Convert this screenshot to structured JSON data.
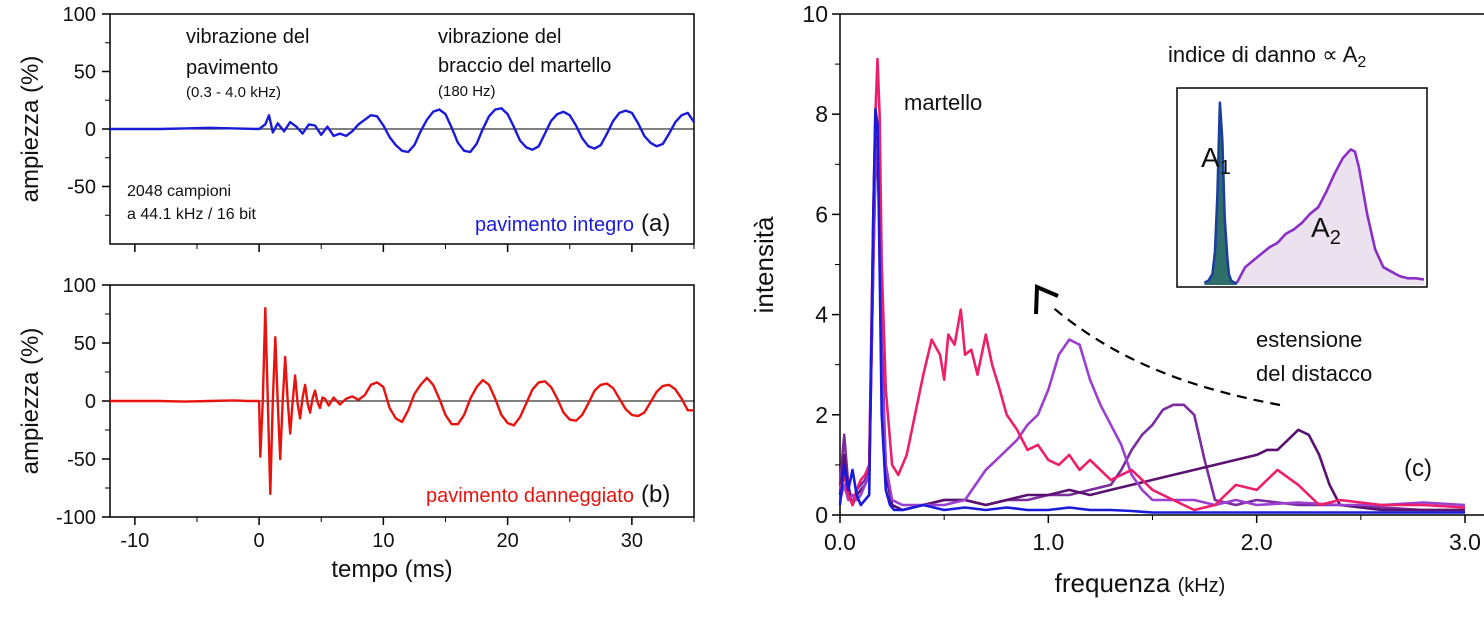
{
  "chart_data": [
    {
      "id": "a",
      "type": "line",
      "ylabel": "ampiezza (%)",
      "xlim": [
        -12,
        35
      ],
      "ylim": [
        -100,
        100
      ],
      "xticks": [
        -10,
        0,
        10,
        20,
        30
      ],
      "yticks": [
        -50,
        0,
        50,
        100
      ],
      "ytick_labels": [
        "-50",
        "0",
        "50",
        "100"
      ],
      "panel_label": "(a)",
      "annotations": {
        "vib_floor": [
          "vibrazione del",
          "pavimento",
          "(0.3 - 4.0 kHz)"
        ],
        "vib_arm": [
          "vibrazione del",
          "braccio del martello",
          "(180 Hz)"
        ],
        "samples": [
          "2048 campioni",
          "a 44.1 kHz / 16 bit"
        ]
      },
      "series": [
        {
          "name": "pavimento integro",
          "color": "#1a1adb",
          "x": [
            -12,
            -10,
            -8,
            -6,
            -4,
            -2,
            0,
            0.5,
            0.8,
            1.1,
            1.5,
            2,
            2.5,
            3,
            3.5,
            4,
            4.5,
            5,
            5.5,
            6,
            6.5,
            7,
            7.5,
            8,
            8.5,
            9,
            9.5,
            10,
            10.5,
            11,
            11.5,
            12,
            12.5,
            13,
            13.5,
            14,
            14.5,
            15,
            15.5,
            16,
            16.5,
            17,
            17.5,
            18,
            18.5,
            19,
            19.5,
            20,
            20.5,
            21,
            21.5,
            22,
            22.5,
            23,
            23.5,
            24,
            24.5,
            25,
            25.5,
            26,
            26.5,
            27,
            27.5,
            28,
            28.5,
            29,
            29.5,
            30,
            30.5,
            31,
            31.5,
            32,
            32.5,
            33,
            33.5,
            34,
            34.5,
            35
          ],
          "y": [
            0,
            0,
            0,
            0.5,
            1,
            0.5,
            0,
            4,
            12,
            -3,
            5,
            -2,
            6,
            2,
            -4,
            4,
            3,
            -5,
            2,
            -6,
            -4,
            -6,
            -2,
            4,
            8,
            12,
            11,
            3,
            -7,
            -14,
            -19,
            -20,
            -14,
            -2,
            8,
            15,
            17,
            13,
            1,
            -12,
            -19,
            -20,
            -13,
            0,
            11,
            17,
            18,
            13,
            2,
            -10,
            -16,
            -18,
            -15,
            -4,
            7,
            13,
            15,
            12,
            3,
            -8,
            -15,
            -17,
            -14,
            -4,
            7,
            14,
            16,
            14,
            5,
            -6,
            -12,
            -15,
            -13,
            -4,
            6,
            12,
            14,
            6
          ]
        }
      ]
    },
    {
      "id": "b",
      "type": "line",
      "xlabel": "tempo (ms)",
      "ylabel": "ampiezza (%)",
      "xlim": [
        -12,
        35
      ],
      "ylim": [
        -100,
        100
      ],
      "xticks": [
        -10,
        0,
        10,
        20,
        30
      ],
      "yticks": [
        -100,
        -50,
        0,
        50,
        100
      ],
      "xtick_labels": [
        "-10",
        "0",
        "10",
        "20",
        "30"
      ],
      "ytick_labels": [
        "-100",
        "-50",
        "0",
        "50",
        "100"
      ],
      "panel_label": "(b)",
      "series": [
        {
          "name": "pavimento danneggiato",
          "color": "#e8130f",
          "x": [
            -12,
            -10,
            -8,
            -6,
            -4,
            -2,
            -1,
            0,
            0.1,
            0.3,
            0.5,
            0.7,
            0.9,
            1.1,
            1.3,
            1.5,
            1.7,
            1.9,
            2.1,
            2.3,
            2.5,
            2.7,
            2.9,
            3.1,
            3.3,
            3.5,
            3.7,
            3.9,
            4.1,
            4.3,
            4.5,
            4.7,
            4.9,
            5.1,
            5.3,
            5.6,
            6,
            6.5,
            7,
            7.5,
            8,
            8.5,
            9,
            9.5,
            10,
            10.5,
            11,
            11.5,
            12,
            12.5,
            13,
            13.5,
            14,
            14.5,
            15,
            15.5,
            16,
            16.5,
            17,
            17.5,
            18,
            18.5,
            19,
            19.5,
            20,
            20.5,
            21,
            21.5,
            22,
            22.5,
            23,
            23.5,
            24,
            24.5,
            25,
            25.5,
            26,
            26.5,
            27,
            27.5,
            28,
            28.5,
            29,
            29.5,
            30,
            30.5,
            31,
            31.5,
            32,
            32.5,
            33,
            33.5,
            34,
            34.5,
            35
          ],
          "y": [
            0,
            0,
            0,
            -0.5,
            0,
            0.5,
            0,
            0,
            -48,
            0,
            80,
            0,
            -80,
            0,
            55,
            0,
            -50,
            0,
            38,
            0,
            -28,
            0,
            22,
            -2,
            -15,
            3,
            14,
            -2,
            -10,
            2,
            9,
            -1,
            -6,
            3,
            2,
            -4,
            3,
            -3,
            2,
            4,
            1,
            5,
            14,
            16,
            12,
            -6,
            -15,
            -18,
            -8,
            6,
            14,
            20,
            14,
            2,
            -12,
            -20,
            -20,
            -12,
            2,
            12,
            18,
            14,
            2,
            -12,
            -19,
            -21,
            -14,
            -2,
            10,
            16,
            17,
            12,
            2,
            -10,
            -16,
            -17,
            -12,
            -2,
            9,
            14,
            15,
            11,
            2,
            -7,
            -12,
            -13,
            -10,
            -1,
            8,
            13,
            14,
            10,
            2,
            -8,
            -8
          ]
        }
      ]
    },
    {
      "id": "c",
      "type": "line",
      "xlabel": "frequenza",
      "xlabel_unit": "(kHz)",
      "ylabel": "intensità",
      "xlim": [
        0,
        3
      ],
      "ylim": [
        0,
        10
      ],
      "xticks": [
        0,
        1,
        2,
        3
      ],
      "yticks": [
        0,
        2,
        4,
        6,
        8,
        10
      ],
      "xtick_labels": [
        "0.0",
        "1.0",
        "2.0",
        "3.0"
      ],
      "ytick_labels": [
        "0",
        "2",
        "4",
        "6",
        "8",
        "10"
      ],
      "panel_label": "(c)",
      "annotations": {
        "hammer": "martello",
        "damage_index": "indice di danno ∝ A",
        "damage_index_sub": "2",
        "extension": [
          "estensione",
          "del distacco"
        ]
      },
      "series": [
        {
          "color": "#1a1adb",
          "x": [
            0,
            0.02,
            0.04,
            0.06,
            0.08,
            0.1,
            0.12,
            0.14,
            0.16,
            0.17,
            0.18,
            0.19,
            0.2,
            0.22,
            0.24,
            0.26,
            0.3,
            0.4,
            0.5,
            0.6,
            0.7,
            0.8,
            0.9,
            1,
            1.1,
            1.2,
            1.3,
            1.4,
            1.5,
            1.6,
            1.7,
            1.8,
            1.9,
            2,
            2.2,
            2.4,
            2.6,
            2.8,
            3
          ],
          "y": [
            0.2,
            1,
            0.5,
            0.9,
            0.4,
            0.2,
            0.3,
            0.4,
            6,
            8.1,
            7.8,
            5,
            2,
            0.5,
            0.2,
            0.1,
            0.1,
            0.2,
            0.1,
            0.15,
            0.1,
            0.15,
            0.1,
            0.1,
            0.15,
            0.1,
            0.1,
            0.08,
            0.05,
            0.05,
            0.05,
            0.05,
            0.05,
            0.05,
            0.05,
            0.05,
            0.05,
            0.05,
            0.05
          ]
        },
        {
          "color": "#ee1f6a",
          "x": [
            0,
            0.02,
            0.04,
            0.06,
            0.08,
            0.1,
            0.12,
            0.14,
            0.16,
            0.17,
            0.18,
            0.19,
            0.2,
            0.22,
            0.25,
            0.28,
            0.32,
            0.36,
            0.4,
            0.44,
            0.48,
            0.5,
            0.52,
            0.55,
            0.58,
            0.6,
            0.63,
            0.66,
            0.7,
            0.73,
            0.76,
            0.8,
            0.85,
            0.9,
            0.95,
            1,
            1.05,
            1.1,
            1.15,
            1.2,
            1.3,
            1.4,
            1.5,
            1.6,
            1.7,
            1.8,
            1.9,
            2,
            2.1,
            2.2,
            2.3,
            2.4,
            2.6,
            2.8,
            3
          ],
          "y": [
            0.5,
            0.8,
            0.4,
            0.2,
            0.5,
            0.7,
            0.8,
            1,
            6,
            8,
            9.1,
            8,
            5,
            2.5,
            1,
            0.8,
            1.2,
            2,
            2.8,
            3.5,
            3.2,
            2.7,
            3.6,
            3.4,
            4.1,
            3.2,
            3.3,
            2.8,
            3.6,
            3,
            2.6,
            2,
            1.7,
            1.3,
            1.4,
            1.1,
            1,
            1.2,
            0.9,
            1.1,
            0.7,
            0.9,
            0.5,
            0.3,
            0.1,
            0.2,
            0.6,
            0.5,
            0.9,
            0.6,
            0.2,
            0.3,
            0.2,
            0.2,
            0.15
          ]
        },
        {
          "color": "#9b3fd1",
          "x": [
            0,
            0.02,
            0.04,
            0.06,
            0.08,
            0.1,
            0.12,
            0.14,
            0.16,
            0.17,
            0.18,
            0.19,
            0.2,
            0.22,
            0.25,
            0.3,
            0.4,
            0.5,
            0.6,
            0.7,
            0.75,
            0.8,
            0.85,
            0.9,
            0.95,
            1,
            1.05,
            1.1,
            1.15,
            1.2,
            1.25,
            1.3,
            1.35,
            1.4,
            1.45,
            1.5,
            1.6,
            1.7,
            1.8,
            1.9,
            2,
            2.2,
            2.4,
            2.6,
            2.8,
            3
          ],
          "y": [
            0.3,
            0.6,
            0.3,
            0.4,
            0.3,
            0.4,
            0.6,
            0.8,
            5,
            7,
            7.2,
            6,
            3,
            1,
            0.3,
            0.2,
            0.2,
            0.2,
            0.3,
            0.9,
            1.1,
            1.3,
            1.5,
            1.8,
            2,
            2.5,
            3.2,
            3.5,
            3.4,
            2.7,
            2.2,
            1.8,
            1.4,
            0.8,
            0.5,
            0.3,
            0.3,
            0.3,
            0.2,
            0.3,
            0.2,
            0.25,
            0.2,
            0.2,
            0.25,
            0.2
          ]
        },
        {
          "color": "#7b2c9e",
          "x": [
            0,
            0.02,
            0.04,
            0.06,
            0.08,
            0.1,
            0.12,
            0.14,
            0.16,
            0.17,
            0.18,
            0.19,
            0.2,
            0.22,
            0.25,
            0.3,
            0.4,
            0.5,
            0.6,
            0.7,
            0.8,
            0.9,
            1,
            1.1,
            1.2,
            1.3,
            1.35,
            1.4,
            1.45,
            1.5,
            1.55,
            1.6,
            1.65,
            1.7,
            1.75,
            1.8,
            1.9,
            2,
            2.2,
            2.4,
            2.6,
            2.8,
            3
          ],
          "y": [
            0.6,
            1.6,
            0.6,
            0.2,
            0.5,
            0.6,
            0.7,
            0.9,
            5.5,
            7.5,
            7.6,
            6.5,
            3.5,
            1,
            0.2,
            0.1,
            0.2,
            0.3,
            0.3,
            0.2,
            0.3,
            0.3,
            0.4,
            0.4,
            0.5,
            0.6,
            0.9,
            1.3,
            1.6,
            1.8,
            2.1,
            2.2,
            2.2,
            2,
            1.1,
            0.3,
            0.2,
            0.3,
            0.2,
            0.2,
            0.15,
            0.1,
            0.1
          ]
        },
        {
          "color": "#5a1270",
          "x": [
            0,
            0.02,
            0.04,
            0.06,
            0.08,
            0.1,
            0.12,
            0.14,
            0.16,
            0.17,
            0.18,
            0.19,
            0.2,
            0.22,
            0.25,
            0.3,
            0.4,
            0.5,
            0.6,
            0.7,
            0.8,
            0.9,
            1,
            1.1,
            1.2,
            1.3,
            1.4,
            1.5,
            1.6,
            1.7,
            1.8,
            1.9,
            2,
            2.05,
            2.1,
            2.15,
            2.2,
            2.25,
            2.3,
            2.35,
            2.4,
            2.5,
            2.6,
            2.8,
            3
          ],
          "y": [
            0.4,
            1.2,
            0.5,
            0.2,
            0.4,
            0.5,
            0.6,
            0.8,
            5,
            6.8,
            7,
            6,
            3,
            0.8,
            0.2,
            0.1,
            0.2,
            0.3,
            0.3,
            0.2,
            0.3,
            0.4,
            0.4,
            0.5,
            0.4,
            0.5,
            0.6,
            0.7,
            0.8,
            0.9,
            1,
            1.1,
            1.2,
            1.3,
            1.3,
            1.5,
            1.7,
            1.6,
            1.2,
            0.6,
            0.2,
            0.15,
            0.1,
            0.1,
            0.1
          ]
        }
      ],
      "inset": {
        "labels": [
          "A",
          "1",
          "A",
          "2"
        ],
        "xlim": [
          0,
          3
        ],
        "ylim": [
          0,
          8.5
        ],
        "peak1": {
          "color": "#1c3f9e",
          "fill": "#2f6f6a",
          "x": [
            0.3,
            0.35,
            0.4,
            0.43,
            0.46,
            0.49,
            0.52,
            0.55,
            0.58,
            0.6,
            0.63,
            0.67,
            0.7
          ],
          "y": [
            0.1,
            0.2,
            0.5,
            1.5,
            4,
            8.2,
            6.5,
            3,
            1.3,
            0.5,
            0.2,
            0.1,
            0.1
          ]
        },
        "peak2": {
          "color": "#8c2fc6",
          "fill": "#ece1ef",
          "x": [
            0.7,
            0.8,
            0.9,
            1,
            1.1,
            1.2,
            1.3,
            1.4,
            1.5,
            1.6,
            1.7,
            1.8,
            1.9,
            2,
            2.1,
            2.15,
            2.2,
            2.3,
            2.4,
            2.5,
            2.6,
            2.7,
            2.8,
            2.9,
            3
          ],
          "y": [
            0.1,
            0.8,
            1.1,
            1.4,
            1.7,
            1.9,
            2.3,
            2.5,
            2.8,
            3.2,
            3.5,
            4.2,
            5,
            5.7,
            6.1,
            6,
            5.3,
            3.2,
            1.6,
            0.8,
            0.6,
            0.4,
            0.3,
            0.3,
            0.25
          ]
        }
      }
    }
  ]
}
